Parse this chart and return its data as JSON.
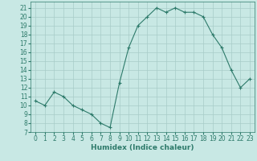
{
  "x": [
    0,
    1,
    2,
    3,
    4,
    5,
    6,
    7,
    8,
    9,
    10,
    11,
    12,
    13,
    14,
    15,
    16,
    17,
    18,
    19,
    20,
    21,
    22,
    23
  ],
  "y": [
    10.5,
    10.0,
    11.5,
    11.0,
    10.0,
    9.5,
    9.0,
    8.0,
    7.5,
    12.5,
    16.5,
    19.0,
    20.0,
    21.0,
    20.5,
    21.0,
    20.5,
    20.5,
    20.0,
    18.0,
    16.5,
    14.0,
    12.0,
    13.0
  ],
  "xlim": [
    -0.5,
    23.5
  ],
  "ylim": [
    7,
    21.7
  ],
  "yticks": [
    7,
    8,
    9,
    10,
    11,
    12,
    13,
    14,
    15,
    16,
    17,
    18,
    19,
    20,
    21
  ],
  "xticks": [
    0,
    1,
    2,
    3,
    4,
    5,
    6,
    7,
    8,
    9,
    10,
    11,
    12,
    13,
    14,
    15,
    16,
    17,
    18,
    19,
    20,
    21,
    22,
    23
  ],
  "xlabel": "Humidex (Indice chaleur)",
  "line_color": "#2d7a6a",
  "marker_color": "#2d7a6a",
  "bg_color": "#c8e8e4",
  "grid_color": "#a8ccc8",
  "tick_color": "#2d7a6a",
  "xlabel_color": "#2d7a6a",
  "xlabel_fontsize": 6.5,
  "tick_fontsize": 5.5
}
